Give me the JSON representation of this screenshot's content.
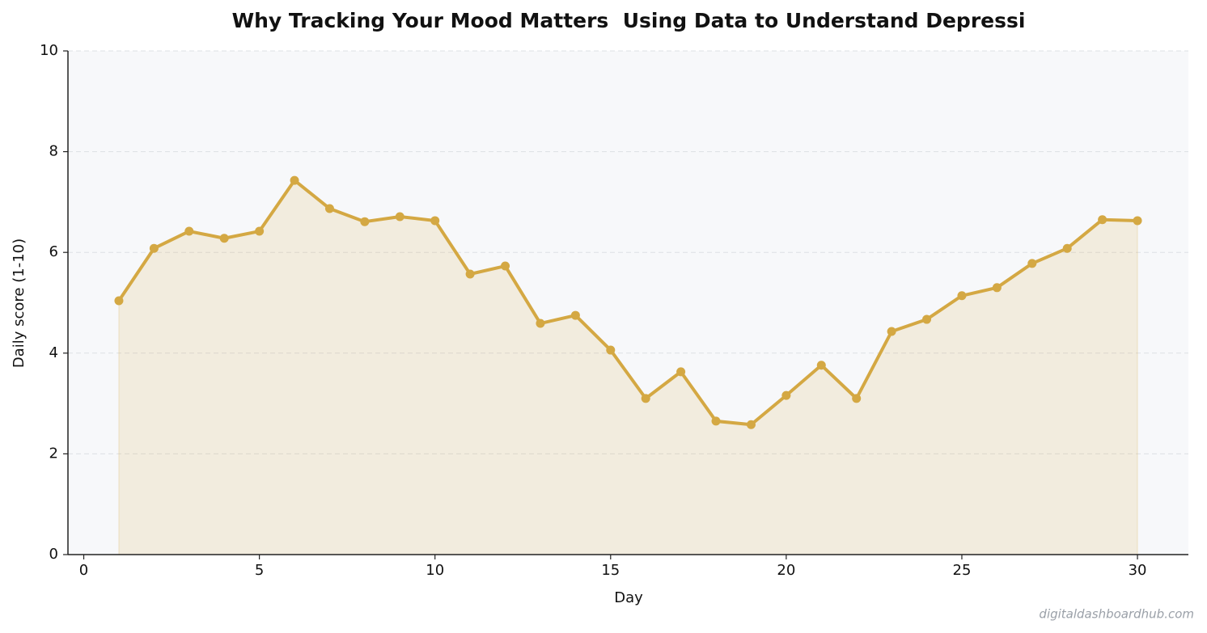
{
  "chart_data": {
    "type": "line",
    "title": "Why Tracking Your Mood Matters  Using Data to Understand Depressi",
    "x_label": "Day",
    "y_label": "Daily score (1-10)",
    "x": [
      1,
      2,
      3,
      4,
      5,
      6,
      7,
      8,
      9,
      10,
      11,
      12,
      13,
      14,
      15,
      16,
      17,
      18,
      19,
      20,
      21,
      22,
      23,
      24,
      25,
      26,
      27,
      28,
      29,
      30
    ],
    "series": [
      {
        "color": "#d4a843",
        "values": [
          5.04,
          6.08,
          6.42,
          6.28,
          6.42,
          7.43,
          6.87,
          6.61,
          6.71,
          6.63,
          5.57,
          5.73,
          4.59,
          4.75,
          4.06,
          3.1,
          3.63,
          2.65,
          2.58,
          3.16,
          3.76,
          3.1,
          4.43,
          4.67,
          5.14,
          5.3,
          5.78,
          6.08,
          6.65,
          6.63
        ]
      }
    ],
    "xlim": [
      -0.45,
      31.45
    ],
    "xticks": [
      0,
      5,
      10,
      15,
      20,
      25,
      30
    ],
    "ylim": [
      0,
      10
    ],
    "yticks": [
      0,
      2,
      4,
      6,
      8,
      10
    ],
    "grid": true,
    "area_fill": true,
    "watermark": "digitaldashboardhub.com"
  }
}
